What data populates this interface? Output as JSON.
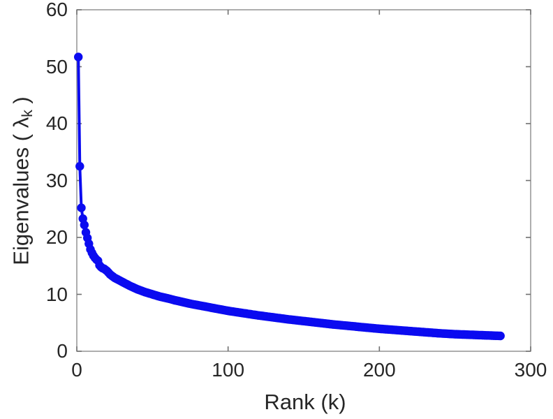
{
  "figure": {
    "background": "#ffffff",
    "kind": "matlab-style scree plot"
  },
  "chart_data": {
    "type": "line",
    "title": "",
    "xlabel": "Rank (k)",
    "ylabel": "Eigenvalues ( λk )",
    "ylabel_parts": {
      "prefix": "Eigenvalues ( ",
      "symbol": "λ",
      "subscript": "k",
      "suffix": " )"
    },
    "xlim": [
      0,
      300
    ],
    "ylim": [
      0,
      60
    ],
    "x_ticks": [
      0,
      100,
      200,
      300
    ],
    "y_ticks": [
      0,
      10,
      20,
      30,
      40,
      50,
      60
    ],
    "grid": false,
    "legend": "none",
    "box": true,
    "marker": "filled-circle",
    "line_color": "#0b0bf0",
    "axis_color": "#8c8c8c",
    "tick_color": "#707070",
    "text_color": "#262626",
    "series": [
      {
        "name": "eigenvalues",
        "k_range": [
          1,
          280
        ],
        "anchor_k": [
          1,
          2,
          3,
          4,
          5,
          6,
          7,
          8,
          9,
          10,
          11,
          12,
          13,
          14,
          15,
          16,
          17,
          18,
          19,
          20,
          22,
          25,
          30,
          35,
          40,
          45,
          50,
          55,
          60,
          65,
          70,
          75,
          80,
          85,
          90,
          95,
          100,
          110,
          120,
          130,
          140,
          150,
          160,
          170,
          180,
          190,
          200,
          210,
          220,
          230,
          240,
          250,
          260,
          270,
          280
        ],
        "anchor_lambda": [
          51.7,
          32.5,
          25.2,
          23.3,
          22.2,
          20.9,
          19.9,
          18.9,
          17.9,
          17.3,
          16.8,
          16.4,
          16.1,
          15.9,
          15.1,
          14.8,
          14.6,
          14.5,
          14.3,
          14.1,
          13.5,
          12.9,
          12.2,
          11.5,
          10.9,
          10.4,
          10.0,
          9.6,
          9.3,
          8.95,
          8.65,
          8.35,
          8.1,
          7.85,
          7.6,
          7.35,
          7.1,
          6.7,
          6.3,
          5.95,
          5.6,
          5.3,
          5.0,
          4.7,
          4.45,
          4.2,
          3.95,
          3.75,
          3.55,
          3.35,
          3.15,
          3.0,
          2.9,
          2.8,
          2.7
        ]
      }
    ]
  }
}
